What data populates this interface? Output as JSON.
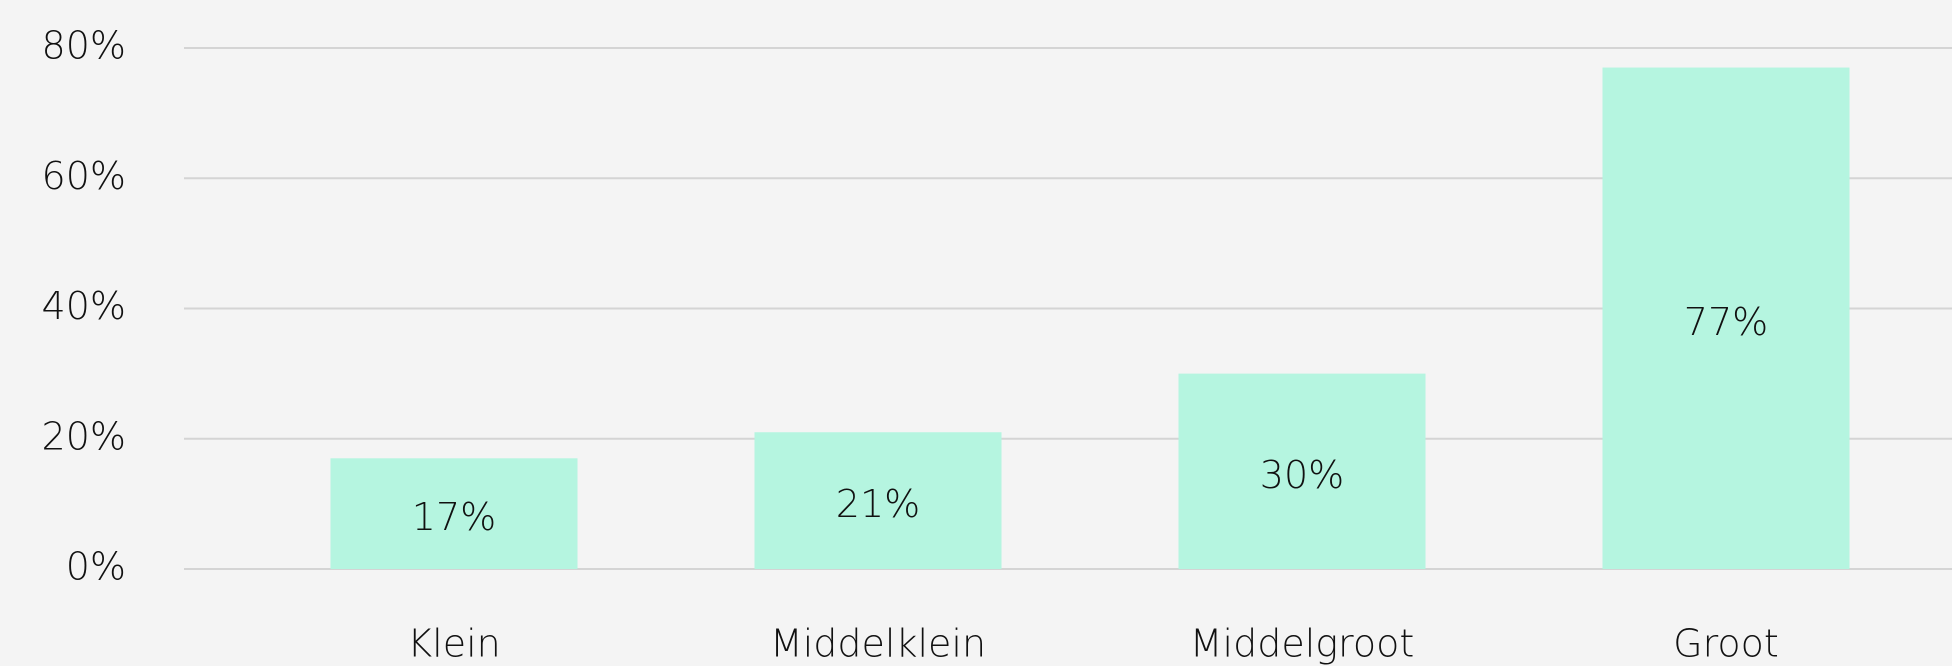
{
  "chart_data": {
    "type": "bar",
    "categories": [
      "Klein",
      "Middelklein",
      "Middelgroot",
      "Groot"
    ],
    "values": [
      17,
      21,
      30,
      77
    ],
    "value_labels": [
      "17%",
      "21%",
      "30%",
      "77%"
    ],
    "color": "#b5f5e0",
    "ylim": [
      0,
      80
    ],
    "yticks": [
      {
        "value": 0,
        "label": "0%"
      },
      {
        "value": 20,
        "label": "20%"
      },
      {
        "value": 40,
        "label": "40%"
      },
      {
        "value": 60,
        "label": "60%"
      },
      {
        "value": 80,
        "label": "80%"
      }
    ],
    "grid": true
  }
}
